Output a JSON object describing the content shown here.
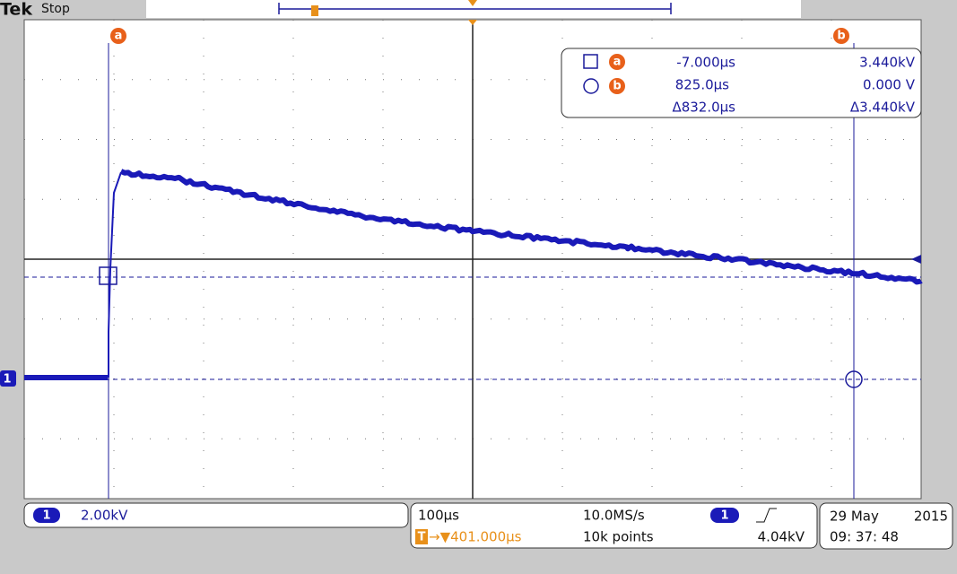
{
  "header": {
    "brand": "Tek",
    "status": "Stop"
  },
  "cursors": {
    "a": "a",
    "b": "b"
  },
  "readout": {
    "rows": [
      {
        "cursor": "a",
        "time": "-7.000µs",
        "value": "3.440kV"
      },
      {
        "cursor": "b",
        "time": "825.0µs",
        "value": "0.000 V"
      },
      {
        "time": "Δ832.0µs",
        "value": "Δ3.440kV"
      }
    ]
  },
  "channel_marker": "1",
  "footer": {
    "channel": "1",
    "scale": "2.00kV",
    "timebase": "100µs",
    "sample_rate": "10.0MS/s",
    "trigger_channel": "1",
    "trigger_level": "4.04kV",
    "trigger_icon": "T",
    "trigger_position": "→▼401.000µs",
    "record_length": "10k points",
    "date": "29 May",
    "year": "2015",
    "time": "09: 37: 48"
  }
}
